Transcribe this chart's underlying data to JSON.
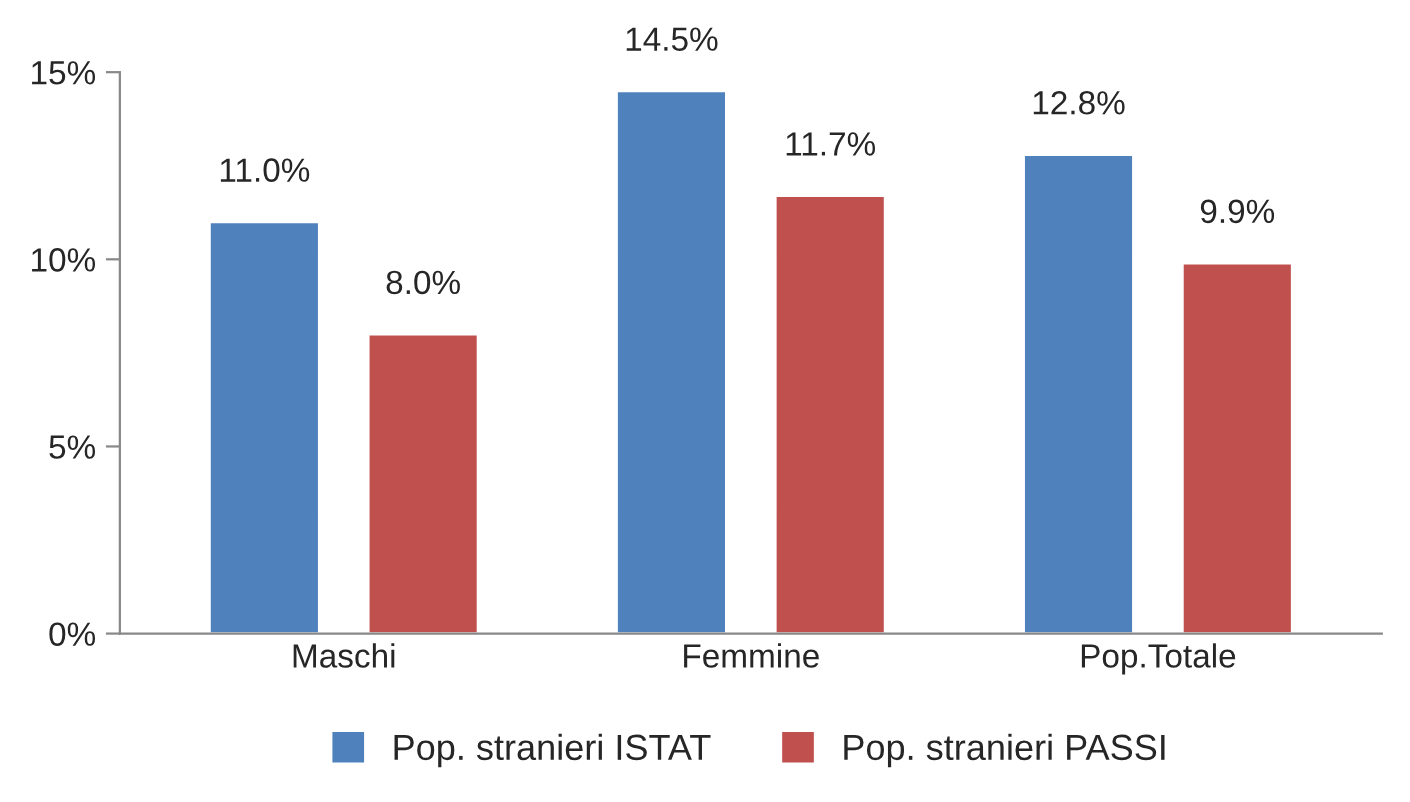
{
  "chart_data": {
    "type": "bar",
    "categories": [
      "Maschi",
      "Femmine",
      "Pop.Totale"
    ],
    "series": [
      {
        "name": "Pop. stranieri ISTAT",
        "color": "#4f81bd",
        "values": [
          11.0,
          14.5,
          12.8
        ],
        "value_labels": [
          "11.0%",
          "14.5%",
          "12.8%"
        ]
      },
      {
        "name": "Pop. stranieri PASSI",
        "color": "#c0504d",
        "values": [
          8.0,
          11.7,
          9.9
        ],
        "value_labels": [
          "8.0%",
          "11.7%",
          "9.9%"
        ]
      }
    ],
    "ylim": [
      0,
      15
    ],
    "yticks": [
      {
        "value": 0,
        "label": "0%"
      },
      {
        "value": 5,
        "label": "5%"
      },
      {
        "value": 10,
        "label": "10%"
      },
      {
        "value": 15,
        "label": "15%"
      }
    ],
    "grid": false,
    "legend": "bottom"
  }
}
